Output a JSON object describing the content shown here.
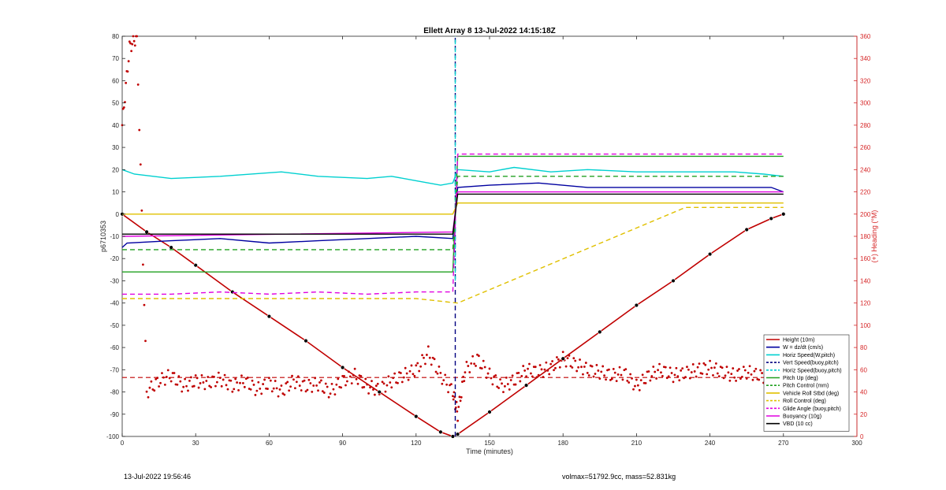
{
  "chart_data": {
    "type": "line",
    "title": "Ellett Array 8 13-Jul-2022 14:15:18Z",
    "xlabel": "Time (minutes)",
    "ylabel": "p6710353",
    "ylabel_right": "(+) Heading (°M)",
    "xlim": [
      0,
      300
    ],
    "ylim": [
      -100,
      80
    ],
    "ylim_right": [
      0,
      360
    ],
    "x_ticks": [
      "0",
      "30",
      "60",
      "90",
      "120",
      "150",
      "180",
      "210",
      "240",
      "270",
      "300"
    ],
    "y_ticks": [
      "80",
      "70",
      "60",
      "50",
      "40",
      "30",
      "20",
      "10",
      "0",
      "-10",
      "-20",
      "-30",
      "-40",
      "-50",
      "-60",
      "-70",
      "-80",
      "-90",
      "-100"
    ],
    "y_right_ticks": [
      "360",
      "340",
      "320",
      "300",
      "280",
      "260",
      "240",
      "220",
      "200",
      "180",
      "160",
      "140",
      "120",
      "100",
      "80",
      "60",
      "40",
      "20",
      "0"
    ],
    "grid": false,
    "legend_position": "bottom-right",
    "series": [
      {
        "name": "Height (10m)",
        "color": "#c00000",
        "style": "solid",
        "x": [
          0,
          10,
          20,
          30,
          45,
          60,
          75,
          90,
          105,
          120,
          130,
          135,
          137,
          150,
          165,
          180,
          195,
          210,
          225,
          240,
          255,
          265,
          270
        ],
        "y": [
          0,
          -8,
          -15,
          -23,
          -35,
          -46,
          -57,
          -69,
          -80,
          -91,
          -98,
          -100,
          -99,
          -89,
          -77,
          -65,
          -53,
          -41,
          -30,
          -18,
          -7,
          -2,
          0
        ]
      },
      {
        "name": "W = dz/dt (cm/s)",
        "color": "#0000a0",
        "style": "solid",
        "x": [
          0,
          2,
          20,
          40,
          60,
          80,
          100,
          120,
          135,
          137,
          150,
          170,
          190,
          210,
          230,
          250,
          265,
          270
        ],
        "y": [
          -15,
          -13,
          -12,
          -11,
          -13,
          -12,
          -11,
          -10,
          -11,
          12,
          13,
          14,
          12,
          12,
          12,
          12,
          12,
          10
        ]
      },
      {
        "name": "Horiz Speed(W,pitch)",
        "color": "#00d0d0",
        "style": "solid",
        "x": [
          0,
          5,
          20,
          40,
          65,
          80,
          100,
          110,
          120,
          130,
          135,
          137,
          150,
          160,
          175,
          190,
          210,
          230,
          250,
          262,
          270
        ],
        "y": [
          20,
          18,
          16,
          17,
          19,
          17,
          16,
          17,
          15,
          13,
          14,
          20,
          19,
          21,
          19,
          20,
          19,
          19,
          19,
          18,
          17
        ]
      },
      {
        "name": "Vert Speed(buoy,pitch)",
        "color": "#000080",
        "style": "dashed",
        "x": [
          136,
          136
        ],
        "y": [
          -100,
          80
        ]
      },
      {
        "name": "Horiz Speed(buoy,pitch)",
        "color": "#00d0d0",
        "style": "dashed",
        "x": [
          136,
          136
        ],
        "y": [
          -30,
          80
        ]
      },
      {
        "name": "Pitch Up (deg)",
        "color": "#20a020",
        "style": "solid",
        "x": [
          0,
          20,
          40,
          60,
          80,
          100,
          120,
          135,
          137,
          150,
          170,
          190,
          210,
          230,
          250,
          270
        ],
        "y": [
          -26,
          -26,
          -26,
          -26,
          -26,
          -26,
          -26,
          -26,
          26,
          26,
          26,
          26,
          26,
          26,
          26,
          26
        ]
      },
      {
        "name": "Pitch Control (mm)",
        "color": "#20a020",
        "style": "dashed",
        "x": [
          0,
          135,
          137,
          270
        ],
        "y": [
          -16,
          -16,
          17,
          17
        ]
      },
      {
        "name": "Vehicle Roll Stbd (deg)",
        "color": "#e0c000",
        "style": "solid",
        "x": [
          0,
          120,
          135,
          137,
          230,
          270
        ],
        "y": [
          0,
          0,
          0,
          5,
          5,
          5
        ]
      },
      {
        "name": "Roll Control (deg)",
        "color": "#e0c000",
        "style": "dashed",
        "x": [
          0,
          120,
          137,
          230,
          270
        ],
        "y": [
          -38,
          -38,
          -40,
          3,
          3
        ]
      },
      {
        "name": "Glide Angle (buoy,pitch)",
        "color": "#e000e0",
        "style": "dashed",
        "x": [
          0,
          20,
          40,
          60,
          80,
          100,
          120,
          135,
          137,
          150,
          170,
          190,
          210,
          230,
          250,
          270
        ],
        "y": [
          -36,
          -36,
          -35,
          -36,
          -35,
          -36,
          -35,
          -35,
          27,
          27,
          27,
          27,
          27,
          27,
          27,
          27
        ]
      },
      {
        "name": "Buoyancy (10g)",
        "color": "#e000e0",
        "style": "solid",
        "x": [
          0,
          135,
          137,
          270
        ],
        "y": [
          -10,
          -8,
          10,
          10
        ]
      },
      {
        "name": "VBD (10 cc)",
        "color": "#000000",
        "style": "solid",
        "x": [
          0,
          135,
          137,
          270
        ],
        "y": [
          -9,
          -9,
          9,
          9
        ]
      }
    ],
    "heading_series": {
      "name": "Heading",
      "color": "#c00000",
      "axis": "right",
      "x": [
        0,
        3,
        6,
        10,
        15,
        20,
        25,
        30,
        35,
        40,
        45,
        50,
        55,
        60,
        65,
        70,
        75,
        80,
        85,
        90,
        95,
        100,
        105,
        110,
        115,
        120,
        125,
        130,
        135,
        137,
        140,
        145,
        150,
        155,
        160,
        165,
        170,
        175,
        180,
        185,
        190,
        195,
        200,
        205,
        210,
        215,
        220,
        225,
        230,
        235,
        240,
        245,
        250,
        255,
        260,
        265,
        270
      ],
      "y": [
        280,
        350,
        360,
        40,
        50,
        55,
        45,
        50,
        48,
        52,
        45,
        50,
        42,
        48,
        40,
        50,
        45,
        47,
        40,
        50,
        55,
        45,
        42,
        50,
        55,
        60,
        75,
        55,
        40,
        20,
        60,
        70,
        55,
        45,
        50,
        60,
        58,
        62,
        70,
        65,
        60,
        58,
        55,
        57,
        45,
        55,
        60,
        55,
        57,
        60,
        62,
        58,
        55,
        58,
        55,
        52,
        50
      ]
    },
    "reference_line": {
      "axis": "right",
      "y": 53,
      "color": "#c00000",
      "style": "dashed"
    }
  },
  "footer": {
    "timestamp": "13-Jul-2022 19:56:46",
    "summary": "volmax=51792.9cc, mass=52.831kg"
  }
}
